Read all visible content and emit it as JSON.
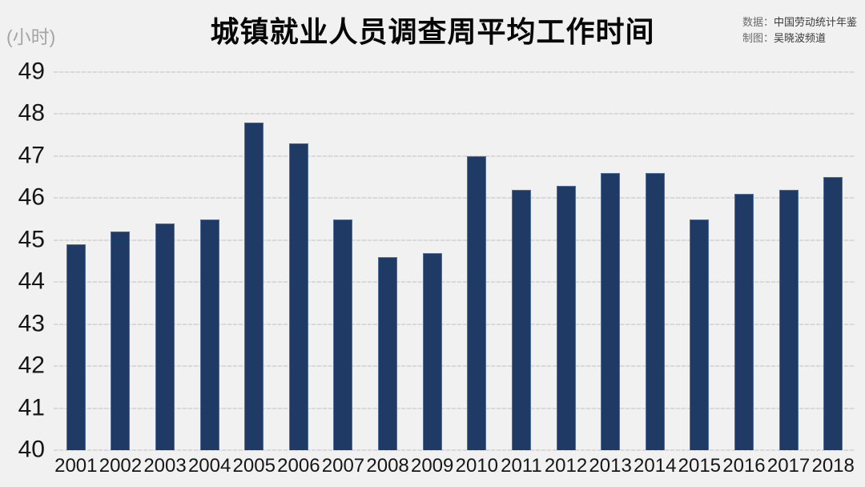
{
  "header": {
    "title": "城镇就业人员调查周平均工作时间",
    "unit_label": "(小时)",
    "source": {
      "data_label": "数据：",
      "data_value": "中国劳动统计年鉴",
      "credit_label": "制图：",
      "credit_value": "吴晓波频道"
    }
  },
  "chart_data": {
    "type": "bar",
    "title": "城镇就业人员调查周平均工作时间",
    "unit": "小时",
    "categories": [
      "2001",
      "2002",
      "2003",
      "2004",
      "2005",
      "2006",
      "2007",
      "2008",
      "2009",
      "2010",
      "2011",
      "2012",
      "2013",
      "2014",
      "2015",
      "2016",
      "2017",
      "2018"
    ],
    "values": [
      44.9,
      45.2,
      45.4,
      45.5,
      47.8,
      47.3,
      45.5,
      44.6,
      44.7,
      47.0,
      46.2,
      46.3,
      46.6,
      46.6,
      45.5,
      46.1,
      46.2,
      46.5
    ],
    "xlabel": "",
    "ylabel": "(小时)",
    "ylim": [
      40,
      49
    ],
    "yticks": [
      40,
      41,
      42,
      43,
      44,
      45,
      46,
      47,
      48,
      49
    ],
    "grid": true,
    "legend": false,
    "colors": {
      "bar_fill": "#1f3a64",
      "bar_border": "#53709b",
      "background": "#f1f1f2",
      "gridline": "#d9d9db",
      "axis_text": "#161616",
      "title_text": "#070707",
      "unit_text": "#a5a5a7"
    }
  }
}
